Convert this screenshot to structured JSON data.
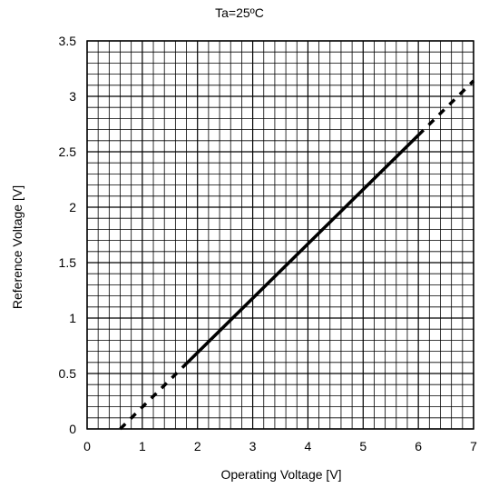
{
  "chart_data": {
    "type": "line",
    "title": "Ta=25ºC",
    "xlabel": "Operating Voltage [V]",
    "ylabel": "Reference Voltage [V]",
    "xlim": [
      0,
      7
    ],
    "ylim": [
      0,
      3.5
    ],
    "x_ticks": [
      "0",
      "1",
      "2",
      "3",
      "4",
      "5",
      "6",
      "7"
    ],
    "y_ticks": [
      "0",
      "0.5",
      "1",
      "1.5",
      "2",
      "2.5",
      "3",
      "3.5"
    ],
    "grid": true,
    "series": [
      {
        "style": "dashed",
        "x": [
          0.6,
          1.8
        ],
        "y": [
          0.0,
          0.59
        ]
      },
      {
        "style": "solid",
        "x": [
          1.8,
          6.0
        ],
        "y": [
          0.59,
          2.65
        ]
      },
      {
        "style": "dashed",
        "x": [
          6.0,
          7.0
        ],
        "y": [
          2.65,
          3.14
        ]
      }
    ]
  }
}
